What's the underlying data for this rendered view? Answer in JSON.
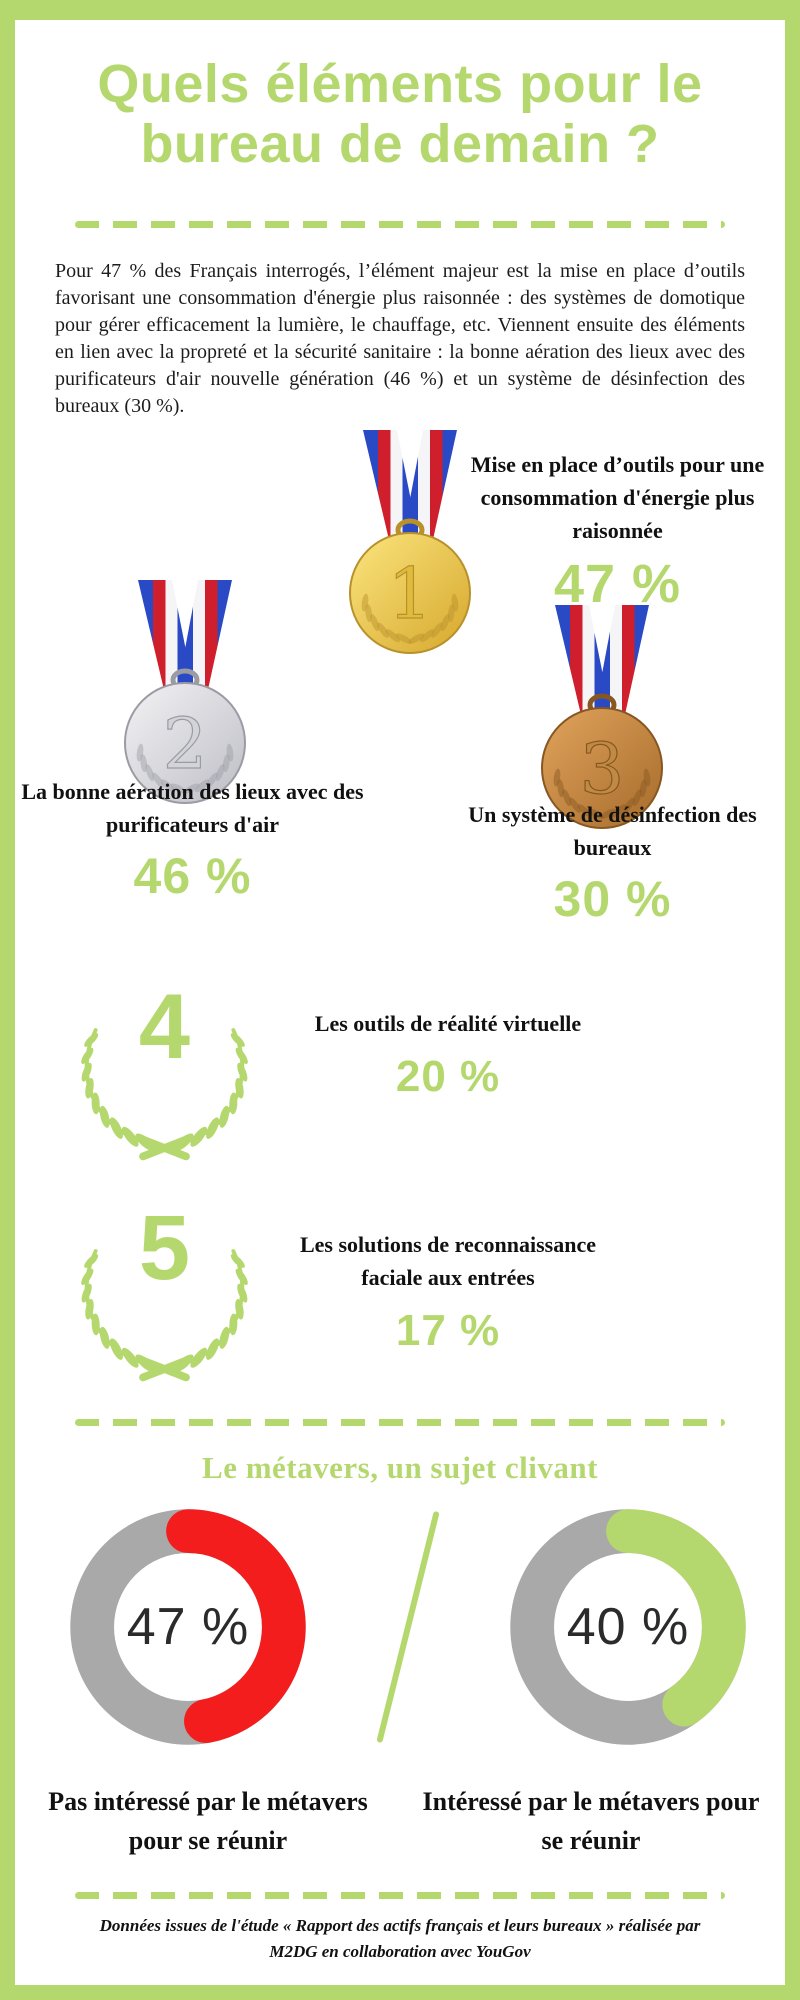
{
  "accent_green": "#b5d86e",
  "ring_gray": "#a9a9a9",
  "title": {
    "line1": "Quels éléments pour le",
    "line2": "bureau de demain ?"
  },
  "intro": {
    "text": "Pour 47 % des Français interrogés, l’élément majeur est la mise en place d’outils favorisant une consommation d'énergie plus raisonnée : des systèmes de domotique pour gérer efficacement la lumière, le chauffage, etc. Viennent ensuite des éléments en lien avec la propreté et la sécurité sanitaire : la bonne aération des lieux avec des purificateurs d'air nouvelle génération (46 %) et un système de désinfection des bureaux (30 %)."
  },
  "ranking": {
    "items": [
      {
        "rank": "1",
        "medal": "gold",
        "label": "Mise en place d’outils pour une consommation d'énergie plus raisonnée",
        "value": "47 %"
      },
      {
        "rank": "2",
        "medal": "silver",
        "label": "La bonne aération des lieux avec des purificateurs d'air",
        "value": "46 %"
      },
      {
        "rank": "3",
        "medal": "bronze",
        "label": "Un système de désinfection des bureaux",
        "value": "30 %"
      },
      {
        "rank": "4",
        "medal": "wreath",
        "label": "Les outils de réalité virtuelle",
        "value": "20 %"
      },
      {
        "rank": "5",
        "medal": "wreath",
        "label": "Les solutions de reconnaissance faciale aux entrées",
        "value": "17 %"
      }
    ]
  },
  "metavers": {
    "heading": "Le métavers, un sujet clivant",
    "donuts": [
      {
        "value": 47,
        "display": "47 %",
        "color": "#f31d1d",
        "label": "Pas intéressé par le métavers pour se réunir"
      },
      {
        "value": 40,
        "display": "40 %",
        "color": "#b5d86e",
        "label": "Intéressé par le métavers pour se réunir"
      }
    ]
  },
  "footer": {
    "source": "Données issues de l'étude « Rapport des actifs français et leurs bureaux » réalisée par M2DG en collaboration avec YouGov"
  },
  "chart_data": [
    {
      "type": "bar",
      "title": "Quels éléments pour le bureau de demain ?",
      "categories": [
        "Mise en place d’outils pour une consommation d'énergie plus raisonnée",
        "La bonne aération des lieux avec des purificateurs d'air",
        "Un système de désinfection des bureaux",
        "Les outils de réalité virtuelle",
        "Les solutions de reconnaissance faciale aux entrées"
      ],
      "values": [
        47,
        46,
        30,
        20,
        17
      ],
      "unit": "%",
      "ylim": [
        0,
        100
      ]
    },
    {
      "type": "pie",
      "title": "Le métavers, un sujet clivant",
      "categories": [
        "Pas intéressé par le métavers pour se réunir",
        "Intéressé par le métavers pour se réunir"
      ],
      "values": [
        47,
        40
      ],
      "colors": [
        "#f31d1d",
        "#b5d86e"
      ],
      "unit": "%",
      "note": "two separate donut gauges on gray rings"
    }
  ]
}
